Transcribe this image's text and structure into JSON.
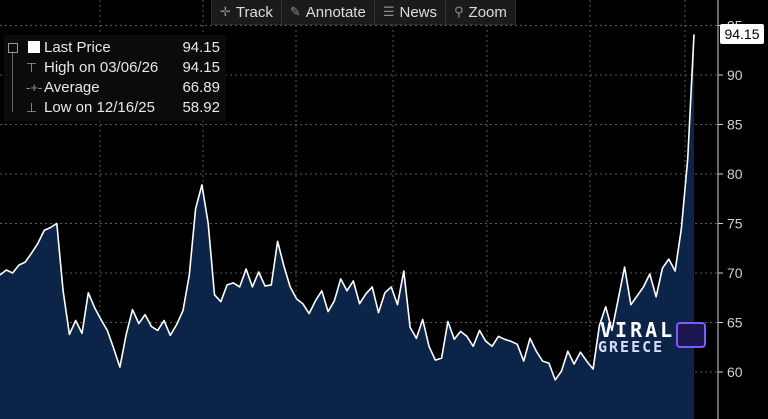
{
  "toolbar": {
    "track": "Track",
    "annotate": "Annotate",
    "news": "News",
    "zoom": "Zoom"
  },
  "legend": {
    "last_price_label": "Last Price",
    "last_price_value": "94.15",
    "high_label": "High on 03/06/26",
    "high_value": "94.15",
    "average_label": "Average",
    "average_value": "66.89",
    "low_label": "Low on 12/16/25",
    "low_value": "58.92"
  },
  "last_price_tag": "94.15",
  "watermark": {
    "line1": "VIRAL",
    "line2": "GREECE"
  },
  "colors": {
    "line": "#ffffff",
    "fill": "#0c2447",
    "grid": "#5a5a5a",
    "background": "#000000"
  },
  "chart_data": {
    "type": "area",
    "y_axis_position": "right",
    "grid": true,
    "ylim": [
      57,
      96
    ],
    "yticks": [
      60,
      65,
      70,
      75,
      80,
      85,
      90,
      95
    ],
    "series": [
      {
        "values": [
          69.8,
          70.3,
          70.0,
          70.8,
          71.1,
          72.0,
          73.0,
          74.3,
          74.6,
          75.0,
          68.2,
          63.8,
          65.2,
          63.9,
          68.0,
          66.5,
          65.3,
          64.2,
          62.4,
          60.5,
          63.8,
          66.3,
          64.9,
          65.8,
          64.6,
          64.2,
          65.2,
          63.7,
          64.8,
          66.2,
          69.8,
          76.5,
          78.9,
          75.0,
          67.8,
          67.1,
          68.8,
          69.0,
          68.6,
          70.4,
          68.6,
          70.1,
          68.7,
          68.8,
          73.2,
          70.7,
          68.6,
          67.4,
          66.9,
          65.9,
          67.2,
          68.2,
          66.1,
          67.2,
          69.4,
          68.2,
          69.2,
          66.9,
          67.9,
          68.6,
          66.0,
          68.0,
          68.6,
          66.8,
          70.2,
          64.5,
          63.4,
          65.3,
          62.6,
          61.2,
          61.4,
          65.1,
          63.3,
          64.1,
          63.6,
          62.6,
          64.2,
          63.1,
          62.6,
          63.6,
          63.3,
          63.1,
          62.8,
          61.1,
          63.4,
          62.1,
          61.1,
          60.9,
          59.2,
          60.1,
          62.1,
          60.8,
          62.0,
          61.1,
          60.3,
          64.7,
          66.6,
          64.2,
          67.4,
          70.6,
          66.8,
          67.7,
          68.6,
          69.9,
          67.6,
          70.5,
          71.4,
          70.2,
          74.5,
          81.5,
          94.1
        ]
      }
    ]
  }
}
